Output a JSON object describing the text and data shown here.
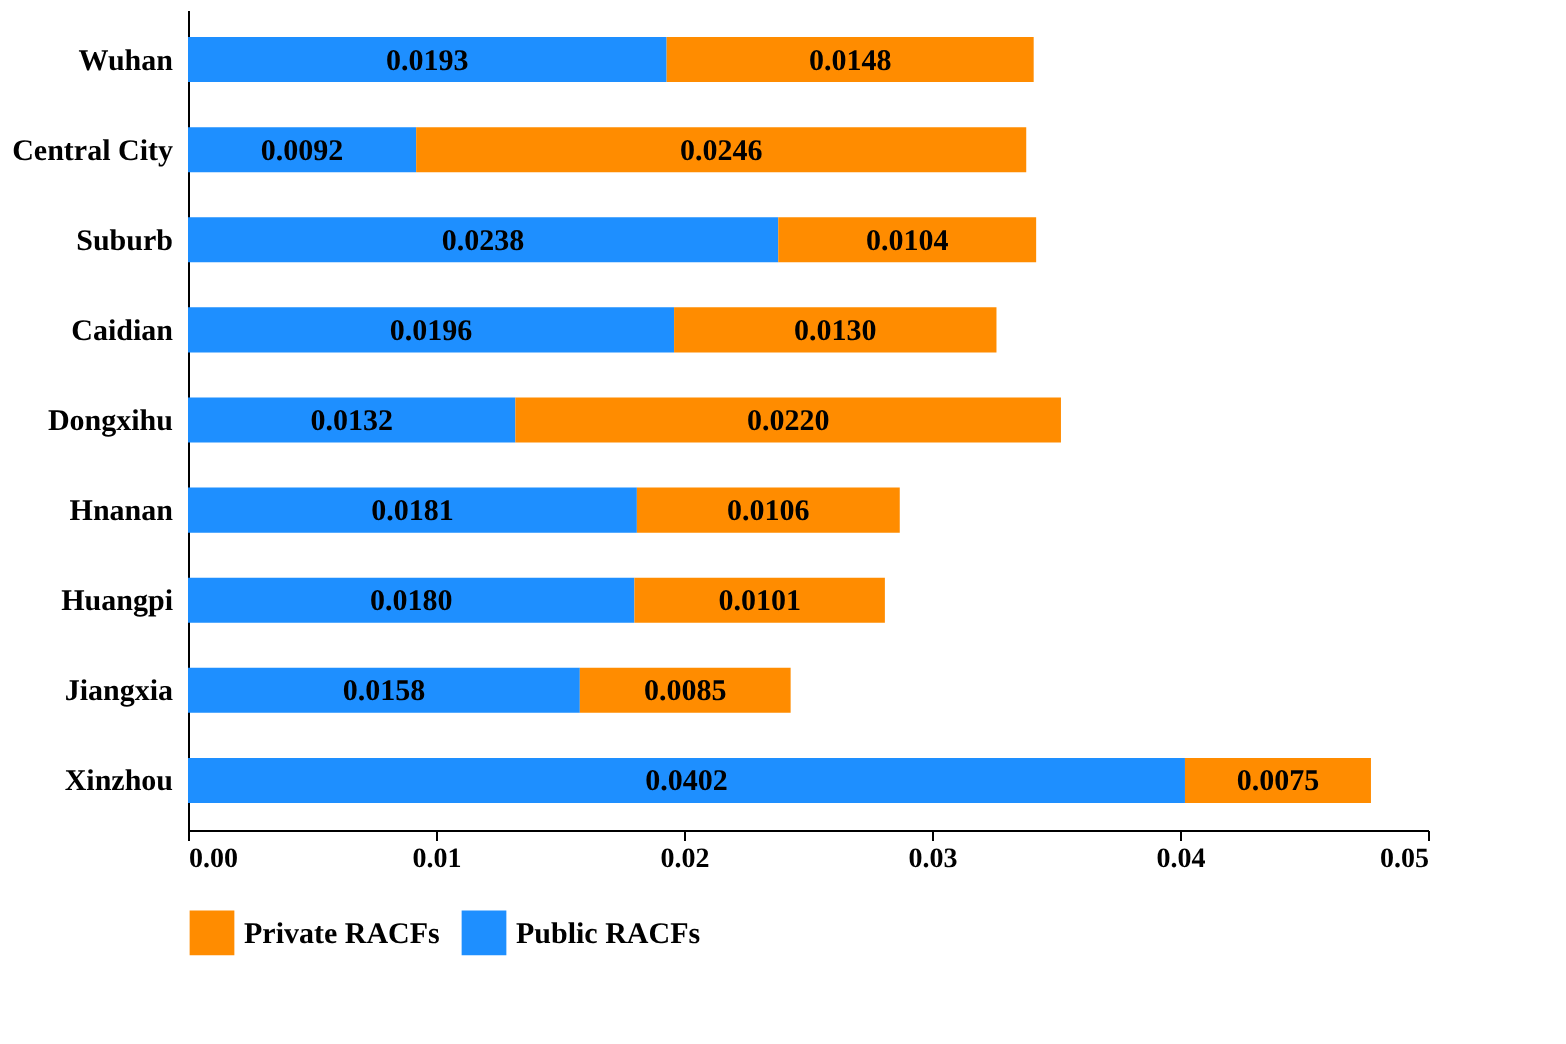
{
  "chart_data": {
    "type": "bar",
    "orientation": "horizontal",
    "stacked": true,
    "categories": [
      "Wuhan",
      "Central City",
      "Suburb",
      "Caidian",
      "Dongxihu",
      "Hnanan",
      "Huangpi",
      "Jiangxia",
      "Xinzhou"
    ],
    "series": [
      {
        "name": "Public RACFs",
        "color": "#1e8fff",
        "values": [
          0.0193,
          0.0092,
          0.0238,
          0.0196,
          0.0132,
          0.0181,
          0.018,
          0.0158,
          0.0402
        ],
        "value_labels": [
          "0.0193",
          "0.0092",
          "0.0238",
          "0.0196",
          "0.0132",
          "0.0181",
          "0.0180",
          "0.0158",
          "0.0402"
        ]
      },
      {
        "name": "Private RACFs",
        "color": "#ff8c00",
        "values": [
          0.0148,
          0.0246,
          0.0104,
          0.013,
          0.022,
          0.0106,
          0.0101,
          0.0085,
          0.0075
        ],
        "value_labels": [
          "0.0148",
          "0.0246",
          "0.0104",
          "0.0130",
          "0.0220",
          "0.0106",
          "0.0101",
          "0.0085",
          "0.0075"
        ]
      }
    ],
    "xlim": [
      0,
      0.05
    ],
    "xticks": [
      {
        "value": 0,
        "label": "0.00"
      },
      {
        "value": 0.01,
        "label": "0.01"
      },
      {
        "value": 0.02,
        "label": "0.02"
      },
      {
        "value": 0.03,
        "label": "0.03"
      },
      {
        "value": 0.04,
        "label": "0.04"
      },
      {
        "value": 0.05,
        "label": "0.05"
      }
    ],
    "grid": false,
    "legend": "bottom"
  }
}
